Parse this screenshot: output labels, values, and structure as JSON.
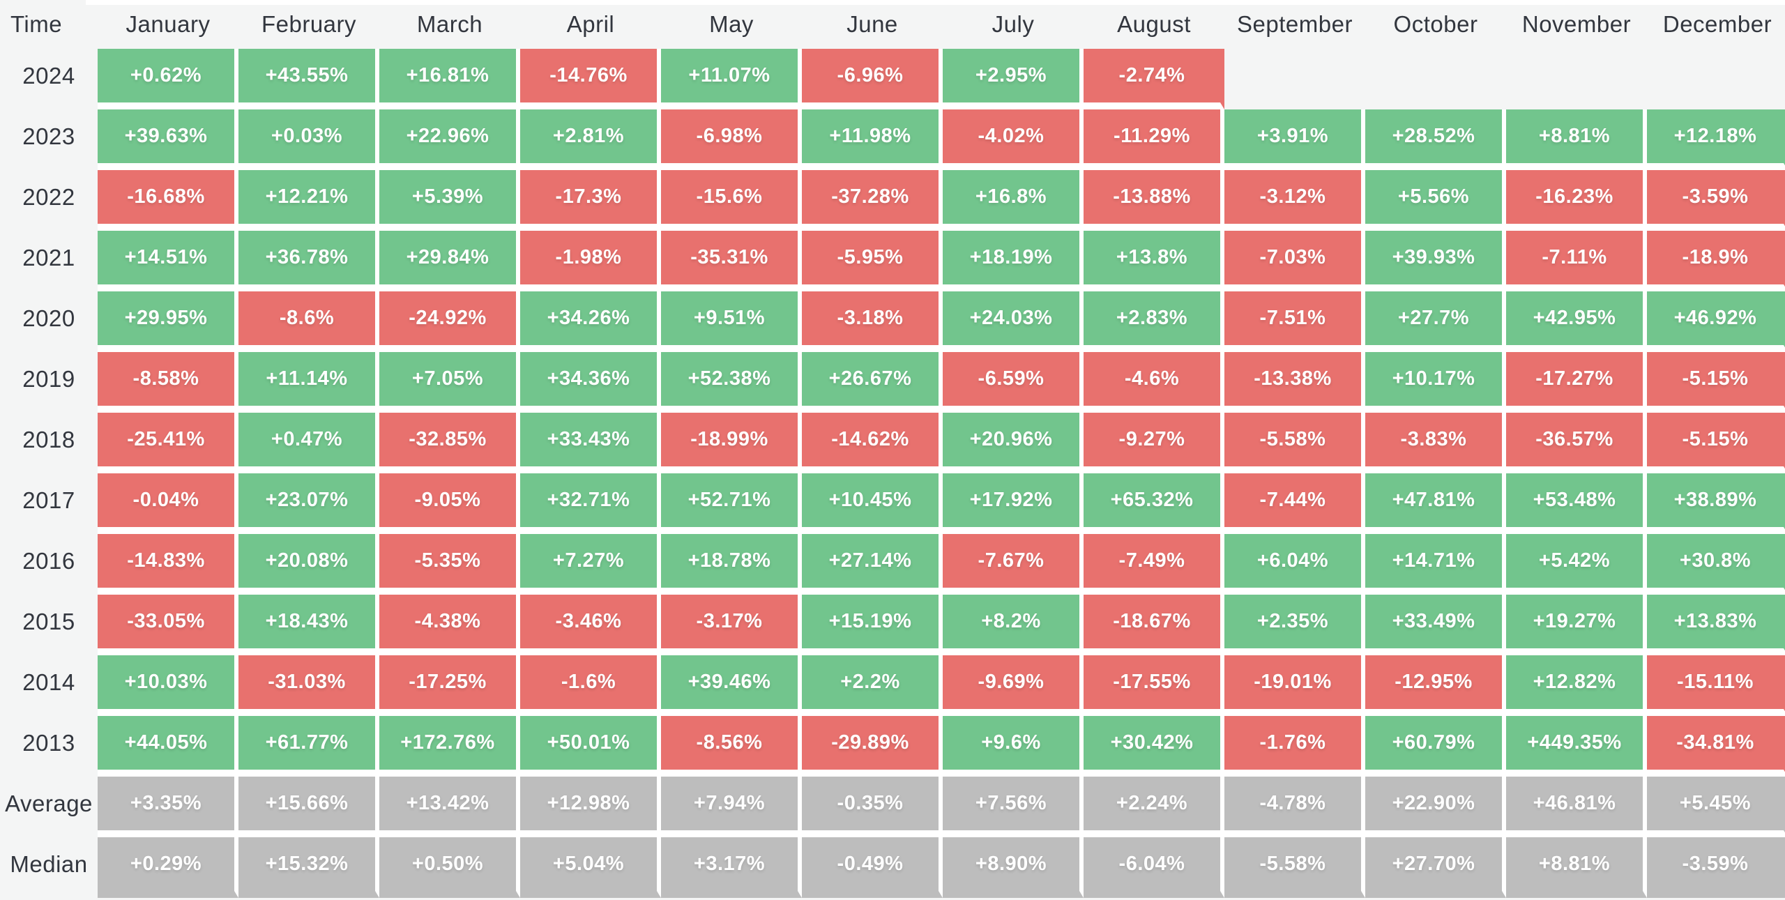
{
  "page": {
    "background": "#f4f5f5"
  },
  "colors": {
    "positive": "#72c58d",
    "negative": "#e8716e",
    "neutral": "#bdbdbd",
    "gutter": "#ffffff",
    "cell_text": "#ffffff",
    "label_text": "#32363e",
    "background": "#f4f5f5"
  },
  "table": {
    "corner_label": "Time"
  },
  "chart_data": {
    "type": "heatmap",
    "title": "Monthly returns heatmap by year",
    "legend_position": "none",
    "grid": false,
    "columns": [
      "January",
      "February",
      "March",
      "April",
      "May",
      "June",
      "July",
      "August",
      "September",
      "October",
      "November",
      "December"
    ],
    "rows": [
      {
        "label": "2024",
        "type": "year",
        "display": [
          "+0.62%",
          "+43.55%",
          "+16.81%",
          "-14.76%",
          "+11.07%",
          "-6.96%",
          "+2.95%",
          "-2.74%",
          null,
          null,
          null,
          null
        ],
        "values": [
          0.62,
          43.55,
          16.81,
          -14.76,
          11.07,
          -6.96,
          2.95,
          -2.74,
          null,
          null,
          null,
          null
        ]
      },
      {
        "label": "2023",
        "type": "year",
        "display": [
          "+39.63%",
          "+0.03%",
          "+22.96%",
          "+2.81%",
          "-6.98%",
          "+11.98%",
          "-4.02%",
          "-11.29%",
          "+3.91%",
          "+28.52%",
          "+8.81%",
          "+12.18%"
        ],
        "values": [
          39.63,
          0.03,
          22.96,
          2.81,
          -6.98,
          11.98,
          -4.02,
          -11.29,
          3.91,
          28.52,
          8.81,
          12.18
        ]
      },
      {
        "label": "2022",
        "type": "year",
        "display": [
          "-16.68%",
          "+12.21%",
          "+5.39%",
          "-17.3%",
          "-15.6%",
          "-37.28%",
          "+16.8%",
          "-13.88%",
          "-3.12%",
          "+5.56%",
          "-16.23%",
          "-3.59%"
        ],
        "values": [
          -16.68,
          12.21,
          5.39,
          -17.3,
          -15.6,
          -37.28,
          16.8,
          -13.88,
          -3.12,
          5.56,
          -16.23,
          -3.59
        ]
      },
      {
        "label": "2021",
        "type": "year",
        "display": [
          "+14.51%",
          "+36.78%",
          "+29.84%",
          "-1.98%",
          "-35.31%",
          "-5.95%",
          "+18.19%",
          "+13.8%",
          "-7.03%",
          "+39.93%",
          "-7.11%",
          "-18.9%"
        ],
        "values": [
          14.51,
          36.78,
          29.84,
          -1.98,
          -35.31,
          -5.95,
          18.19,
          13.8,
          -7.03,
          39.93,
          -7.11,
          -18.9
        ]
      },
      {
        "label": "2020",
        "type": "year",
        "display": [
          "+29.95%",
          "-8.6%",
          "-24.92%",
          "+34.26%",
          "+9.51%",
          "-3.18%",
          "+24.03%",
          "+2.83%",
          "-7.51%",
          "+27.7%",
          "+42.95%",
          "+46.92%"
        ],
        "values": [
          29.95,
          -8.6,
          -24.92,
          34.26,
          9.51,
          -3.18,
          24.03,
          2.83,
          -7.51,
          27.7,
          42.95,
          46.92
        ]
      },
      {
        "label": "2019",
        "type": "year",
        "display": [
          "-8.58%",
          "+11.14%",
          "+7.05%",
          "+34.36%",
          "+52.38%",
          "+26.67%",
          "-6.59%",
          "-4.6%",
          "-13.38%",
          "+10.17%",
          "-17.27%",
          "-5.15%"
        ],
        "values": [
          -8.58,
          11.14,
          7.05,
          34.36,
          52.38,
          26.67,
          -6.59,
          -4.6,
          -13.38,
          10.17,
          -17.27,
          -5.15
        ]
      },
      {
        "label": "2018",
        "type": "year",
        "display": [
          "-25.41%",
          "+0.47%",
          "-32.85%",
          "+33.43%",
          "-18.99%",
          "-14.62%",
          "+20.96%",
          "-9.27%",
          "-5.58%",
          "-3.83%",
          "-36.57%",
          "-5.15%"
        ],
        "values": [
          -25.41,
          0.47,
          -32.85,
          33.43,
          -18.99,
          -14.62,
          20.96,
          -9.27,
          -5.58,
          -3.83,
          -36.57,
          -5.15
        ]
      },
      {
        "label": "2017",
        "type": "year",
        "display": [
          "-0.04%",
          "+23.07%",
          "-9.05%",
          "+32.71%",
          "+52.71%",
          "+10.45%",
          "+17.92%",
          "+65.32%",
          "-7.44%",
          "+47.81%",
          "+53.48%",
          "+38.89%"
        ],
        "values": [
          -0.04,
          23.07,
          -9.05,
          32.71,
          52.71,
          10.45,
          17.92,
          65.32,
          -7.44,
          47.81,
          53.48,
          38.89
        ]
      },
      {
        "label": "2016",
        "type": "year",
        "display": [
          "-14.83%",
          "+20.08%",
          "-5.35%",
          "+7.27%",
          "+18.78%",
          "+27.14%",
          "-7.67%",
          "-7.49%",
          "+6.04%",
          "+14.71%",
          "+5.42%",
          "+30.8%"
        ],
        "values": [
          -14.83,
          20.08,
          -5.35,
          7.27,
          18.78,
          27.14,
          -7.67,
          -7.49,
          6.04,
          14.71,
          5.42,
          30.8
        ]
      },
      {
        "label": "2015",
        "type": "year",
        "display": [
          "-33.05%",
          "+18.43%",
          "-4.38%",
          "-3.46%",
          "-3.17%",
          "+15.19%",
          "+8.2%",
          "-18.67%",
          "+2.35%",
          "+33.49%",
          "+19.27%",
          "+13.83%"
        ],
        "values": [
          -33.05,
          18.43,
          -4.38,
          -3.46,
          -3.17,
          15.19,
          8.2,
          -18.67,
          2.35,
          33.49,
          19.27,
          13.83
        ]
      },
      {
        "label": "2014",
        "type": "year",
        "display": [
          "+10.03%",
          "-31.03%",
          "-17.25%",
          "-1.6%",
          "+39.46%",
          "+2.2%",
          "-9.69%",
          "-17.55%",
          "-19.01%",
          "-12.95%",
          "+12.82%",
          "-15.11%"
        ],
        "values": [
          10.03,
          -31.03,
          -17.25,
          -1.6,
          39.46,
          2.2,
          -9.69,
          -17.55,
          -19.01,
          -12.95,
          12.82,
          -15.11
        ]
      },
      {
        "label": "2013",
        "type": "year",
        "display": [
          "+44.05%",
          "+61.77%",
          "+172.76%",
          "+50.01%",
          "-8.56%",
          "-29.89%",
          "+9.6%",
          "+30.42%",
          "-1.76%",
          "+60.79%",
          "+449.35%",
          "-34.81%"
        ],
        "values": [
          44.05,
          61.77,
          172.76,
          50.01,
          -8.56,
          -29.89,
          9.6,
          30.42,
          -1.76,
          60.79,
          449.35,
          -34.81
        ]
      },
      {
        "label": "Average",
        "type": "summary",
        "display": [
          "+3.35%",
          "+15.66%",
          "+13.42%",
          "+12.98%",
          "+7.94%",
          "-0.35%",
          "+7.56%",
          "+2.24%",
          "-4.78%",
          "+22.90%",
          "+46.81%",
          "+5.45%"
        ],
        "values": [
          3.35,
          15.66,
          13.42,
          12.98,
          7.94,
          -0.35,
          7.56,
          2.24,
          -4.78,
          22.9,
          46.81,
          5.45
        ]
      },
      {
        "label": "Median",
        "type": "summary",
        "display": [
          "+0.29%",
          "+15.32%",
          "+0.50%",
          "+5.04%",
          "+3.17%",
          "-0.49%",
          "+8.90%",
          "-6.04%",
          "-5.58%",
          "+27.70%",
          "+8.81%",
          "-3.59%"
        ],
        "values": [
          0.29,
          15.32,
          0.5,
          5.04,
          3.17,
          -0.49,
          8.9,
          -6.04,
          -5.58,
          27.7,
          8.81,
          -3.59
        ]
      }
    ]
  }
}
